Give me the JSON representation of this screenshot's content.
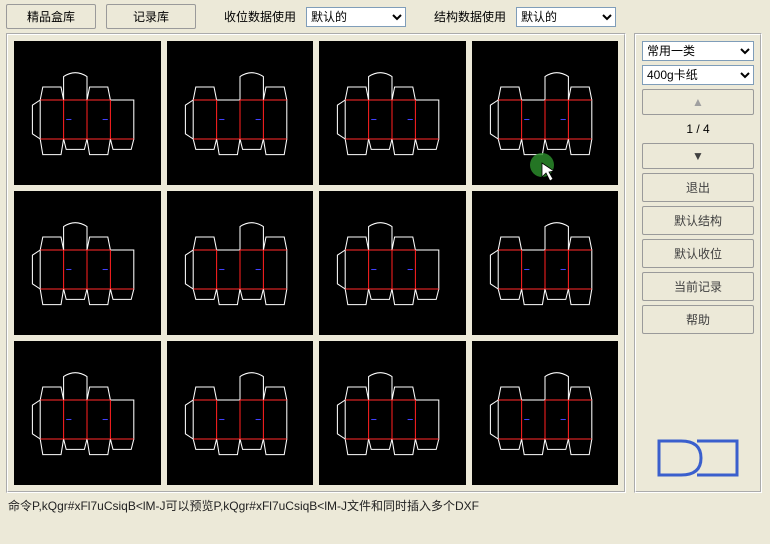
{
  "topbar": {
    "btn1": "精品盒库",
    "btn2": "记录库",
    "label1": "收位数据使用",
    "select1": "默认的",
    "label2": "结构数据使用",
    "select2": "默认的"
  },
  "side": {
    "select_cat": "常用一类",
    "select_mat": "400g卡纸",
    "arrow_up": "▲",
    "page": "1 / 4",
    "arrow_down": "▼",
    "exit": "退出",
    "def_struct": "默认结构",
    "def_pos": "默认收位",
    "cur_rec": "当前记录",
    "help": "帮助"
  },
  "status": "命令P,kQgr#xFl7uCsiqB<lM-J可以预览P,kQgr#xFl7uCsiqB<lM-J文件和同时插入多个DXF",
  "style": {
    "bg": "#ece9d8",
    "cell_bg": "#000000",
    "die_stroke_white": "#ffffff",
    "die_stroke_red": "#ff2020",
    "die_stroke_blue": "#4040ff",
    "logo_color": "#3a5fcd",
    "cursor_circle": "#2a8a2a"
  },
  "thumbs": [
    {
      "variant": "a"
    },
    {
      "variant": "b"
    },
    {
      "variant": "c"
    },
    {
      "variant": "d"
    },
    {
      "variant": "e"
    },
    {
      "variant": "f"
    },
    {
      "variant": "g"
    },
    {
      "variant": "h"
    },
    {
      "variant": "i"
    },
    {
      "variant": "j"
    },
    {
      "variant": "k"
    },
    {
      "variant": "l"
    }
  ]
}
